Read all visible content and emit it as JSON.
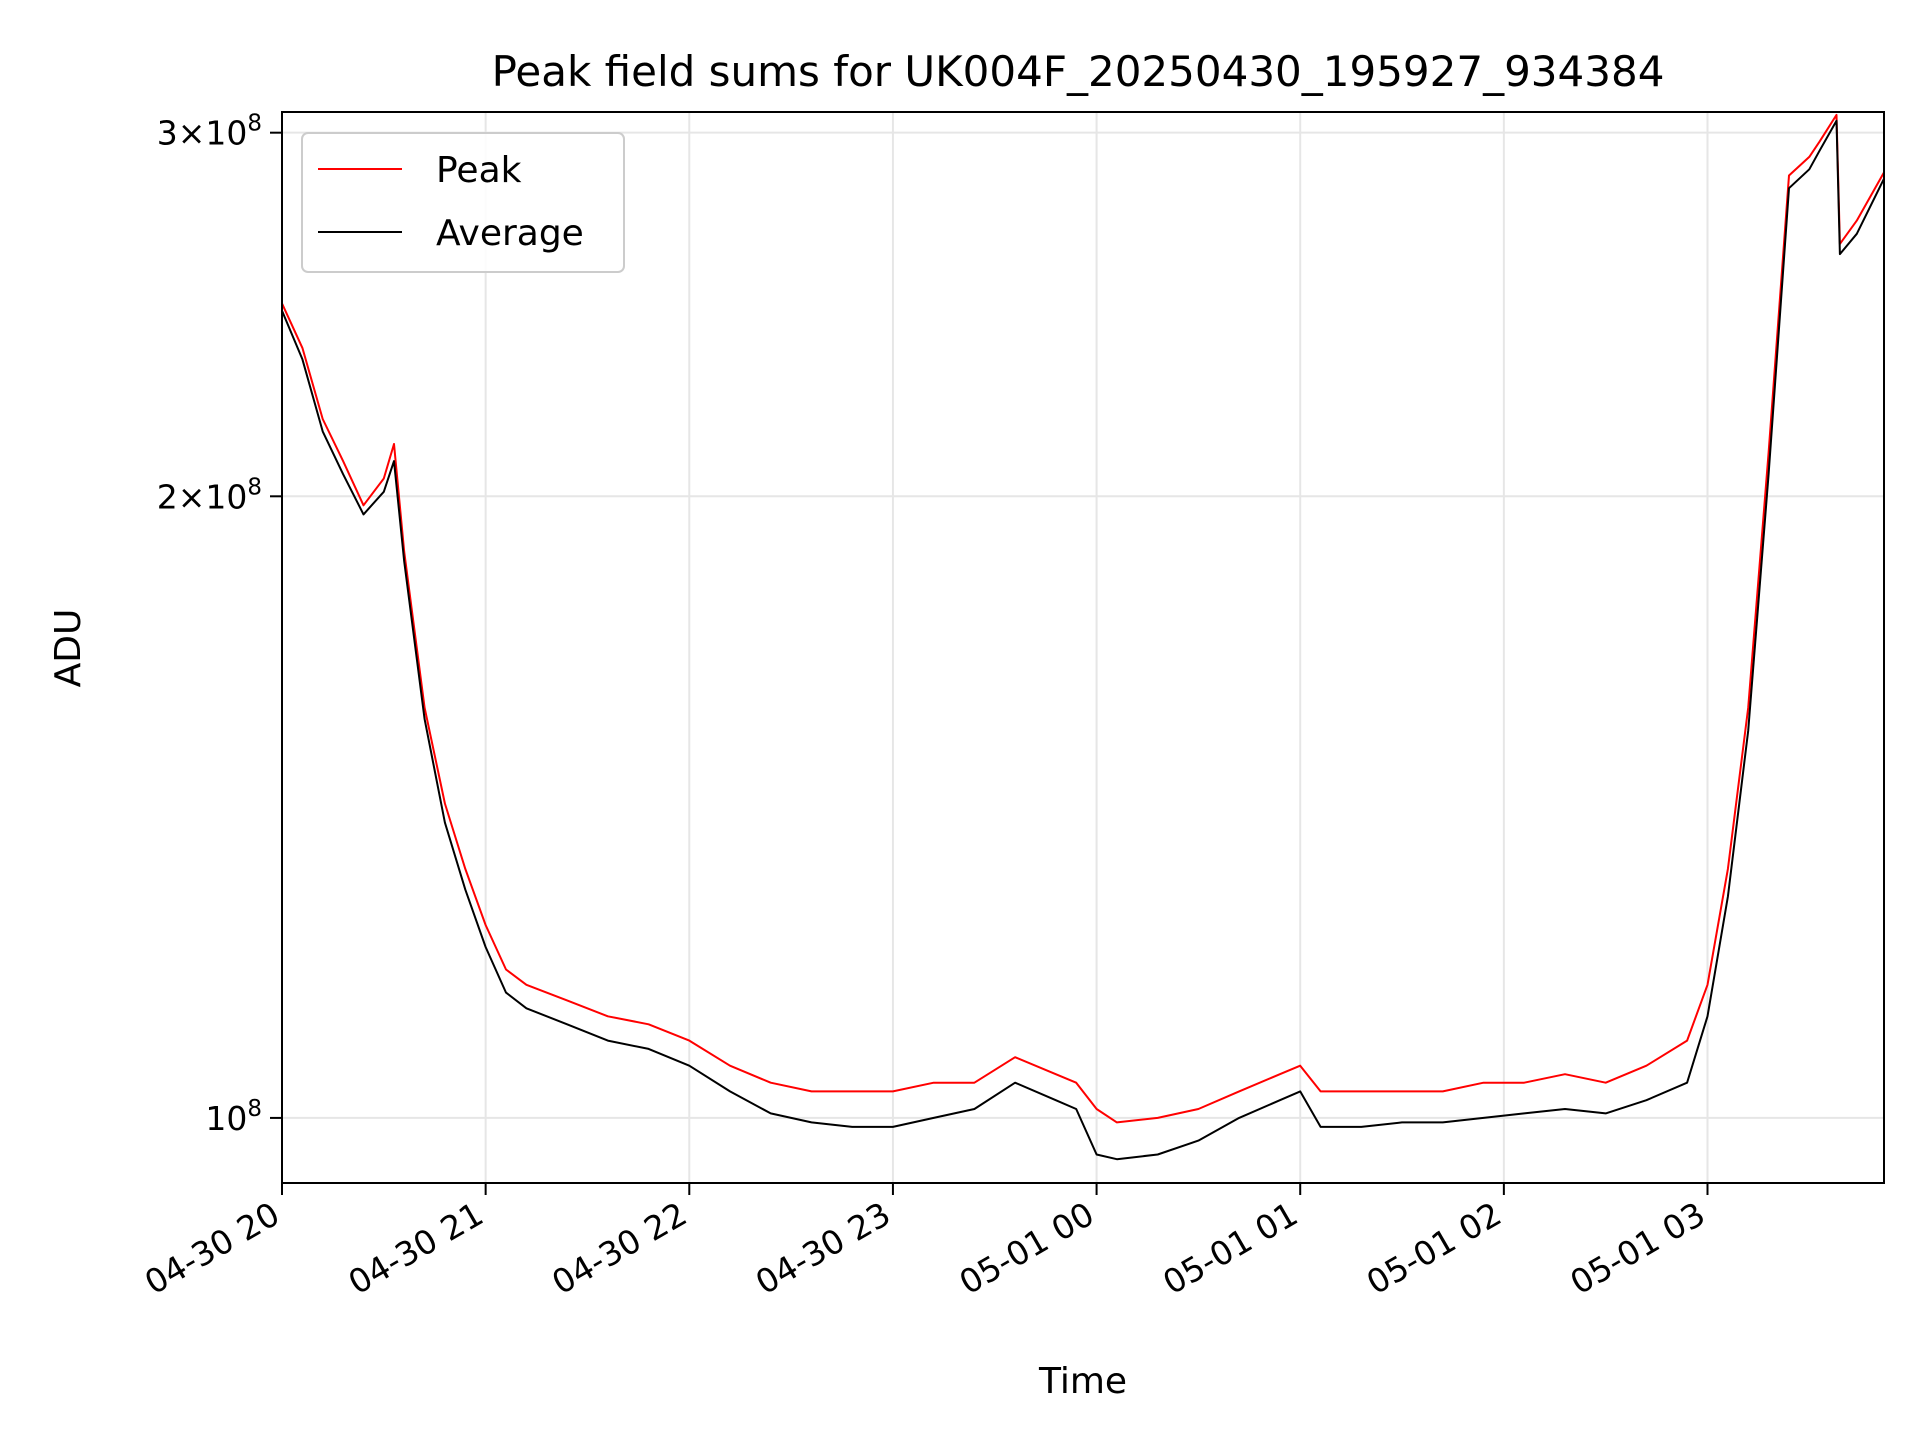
{
  "chart_data": {
    "type": "line",
    "title": "Peak field sums for UK004F_20250430_195927_934384",
    "xlabel": "Time",
    "ylabel": "ADU",
    "y_scale": "log",
    "ylim": [
      93000000,
      307000000
    ],
    "xlim": [
      "2025-04-30 20:00",
      "2025-05-01 03:52"
    ],
    "x_ticks": [
      {
        "time": "2025-04-30 20:00",
        "label": "04-30 20"
      },
      {
        "time": "2025-04-30 21:00",
        "label": "04-30 21"
      },
      {
        "time": "2025-04-30 22:00",
        "label": "04-30 22"
      },
      {
        "time": "2025-04-30 23:00",
        "label": "04-30 23"
      },
      {
        "time": "2025-05-01 00:00",
        "label": "05-01 00"
      },
      {
        "time": "2025-05-01 01:00",
        "label": "05-01 01"
      },
      {
        "time": "2025-05-01 02:00",
        "label": "05-01 02"
      },
      {
        "time": "2025-05-01 03:00",
        "label": "05-01 03"
      }
    ],
    "y_ticks": [
      {
        "value": 100000000,
        "base": "10",
        "exp": "8"
      },
      {
        "value": 200000000,
        "base": "2×10",
        "exp": "8"
      },
      {
        "value": 300000000,
        "base": "3×10",
        "exp": "8"
      }
    ],
    "grid": true,
    "legend_position": "top-left",
    "series": [
      {
        "name": "Peak",
        "color": "#ff0000",
        "x": [
          "2025-04-30 20:00",
          "2025-04-30 20:06",
          "2025-04-30 20:12",
          "2025-04-30 20:18",
          "2025-04-30 20:24",
          "2025-04-30 20:30",
          "2025-04-30 20:33",
          "2025-04-30 20:36",
          "2025-04-30 20:42",
          "2025-04-30 20:48",
          "2025-04-30 20:54",
          "2025-04-30 21:00",
          "2025-04-30 21:06",
          "2025-04-30 21:12",
          "2025-04-30 21:24",
          "2025-04-30 21:36",
          "2025-04-30 21:48",
          "2025-04-30 22:00",
          "2025-04-30 22:12",
          "2025-04-30 22:24",
          "2025-04-30 22:36",
          "2025-04-30 22:48",
          "2025-04-30 23:00",
          "2025-04-30 23:12",
          "2025-04-30 23:24",
          "2025-04-30 23:36",
          "2025-04-30 23:48",
          "2025-04-30 23:54",
          "2025-05-01 00:00",
          "2025-05-01 00:06",
          "2025-05-01 00:18",
          "2025-05-01 00:30",
          "2025-05-01 00:42",
          "2025-05-01 00:54",
          "2025-05-01 01:00",
          "2025-05-01 01:06",
          "2025-05-01 01:18",
          "2025-05-01 01:30",
          "2025-05-01 01:42",
          "2025-05-01 01:54",
          "2025-05-01 02:06",
          "2025-05-01 02:18",
          "2025-05-01 02:30",
          "2025-05-01 02:42",
          "2025-05-01 02:54",
          "2025-05-01 03:00",
          "2025-05-01 03:06",
          "2025-05-01 03:12",
          "2025-05-01 03:18",
          "2025-05-01 03:24",
          "2025-05-01 03:30",
          "2025-05-01 03:33",
          "2025-05-01 03:38",
          "2025-05-01 03:39",
          "2025-05-01 03:44",
          "2025-05-01 03:52"
        ],
        "values": [
          248000000,
          236000000,
          218000000,
          208000000,
          198000000,
          204000000,
          212000000,
          188000000,
          158000000,
          142000000,
          132000000,
          124000000,
          118000000,
          116000000,
          114000000,
          112000000,
          111000000,
          109000000,
          106000000,
          104000000,
          103000000,
          103000000,
          103000000,
          104000000,
          104000000,
          107000000,
          105000000,
          104000000,
          101000000,
          99500000,
          100000000,
          101000000,
          103000000,
          105000000,
          106000000,
          103000000,
          103000000,
          103000000,
          103000000,
          104000000,
          104000000,
          105000000,
          104000000,
          106000000,
          109000000,
          116000000,
          132000000,
          158000000,
          210000000,
          286000000,
          292000000,
          297000000,
          306000000,
          265000000,
          272000000,
          287000000
        ]
      },
      {
        "name": "Average",
        "color": "#000000",
        "x": [
          "2025-04-30 20:00",
          "2025-04-30 20:06",
          "2025-04-30 20:12",
          "2025-04-30 20:18",
          "2025-04-30 20:24",
          "2025-04-30 20:30",
          "2025-04-30 20:33",
          "2025-04-30 20:36",
          "2025-04-30 20:42",
          "2025-04-30 20:48",
          "2025-04-30 20:54",
          "2025-04-30 21:00",
          "2025-04-30 21:06",
          "2025-04-30 21:12",
          "2025-04-30 21:24",
          "2025-04-30 21:36",
          "2025-04-30 21:48",
          "2025-04-30 22:00",
          "2025-04-30 22:12",
          "2025-04-30 22:24",
          "2025-04-30 22:36",
          "2025-04-30 22:48",
          "2025-04-30 23:00",
          "2025-04-30 23:12",
          "2025-04-30 23:24",
          "2025-04-30 23:36",
          "2025-04-30 23:48",
          "2025-04-30 23:54",
          "2025-05-01 00:00",
          "2025-05-01 00:06",
          "2025-05-01 00:18",
          "2025-05-01 00:30",
          "2025-05-01 00:42",
          "2025-05-01 00:54",
          "2025-05-01 01:00",
          "2025-05-01 01:06",
          "2025-05-01 01:18",
          "2025-05-01 01:30",
          "2025-05-01 01:42",
          "2025-05-01 01:54",
          "2025-05-01 02:06",
          "2025-05-01 02:18",
          "2025-05-01 02:30",
          "2025-05-01 02:42",
          "2025-05-01 02:54",
          "2025-05-01 03:00",
          "2025-05-01 03:06",
          "2025-05-01 03:12",
          "2025-05-01 03:18",
          "2025-05-01 03:24",
          "2025-05-01 03:30",
          "2025-05-01 03:33",
          "2025-05-01 03:38",
          "2025-05-01 03:39",
          "2025-05-01 03:44",
          "2025-05-01 03:52"
        ],
        "values": [
          246000000,
          233000000,
          215000000,
          205000000,
          196000000,
          201000000,
          208000000,
          186000000,
          156000000,
          139000000,
          129000000,
          121000000,
          115000000,
          113000000,
          111000000,
          109000000,
          108000000,
          106000000,
          103000000,
          100500000,
          99500000,
          99000000,
          99000000,
          100000000,
          101000000,
          104000000,
          102000000,
          101000000,
          96000000,
          95500000,
          96000000,
          97500000,
          100000000,
          102000000,
          103000000,
          99000000,
          99000000,
          99500000,
          99500000,
          100000000,
          100500000,
          101000000,
          100500000,
          102000000,
          104000000,
          112000000,
          128000000,
          154000000,
          205000000,
          282000000,
          288000000,
          294000000,
          304000000,
          262000000,
          268000000,
          285000000
        ]
      }
    ]
  }
}
